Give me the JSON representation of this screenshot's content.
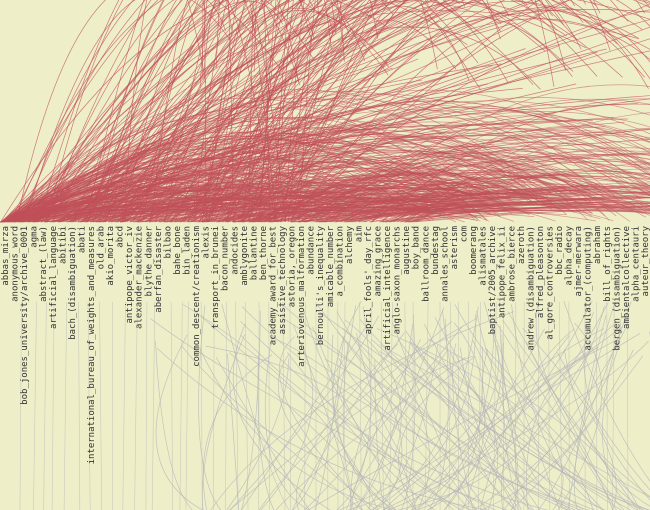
{
  "colors": {
    "background": "#eeeec9",
    "upper_links": "#c0505a",
    "lower_links": "#b4b4b8",
    "label_text": "#333333"
  },
  "labels": [
    "abbas_mirza",
    "anonymous_word",
    "bob_jones_university/archive_0001",
    "agma",
    "abstract_(law)",
    "artificial_language",
    "abitibi",
    "bach_(disambiguation)",
    "abati",
    "international_bureau_of_weights_and_measures",
    "old_arab",
    "akio_morita",
    "abcd",
    "antipope_victor_iv",
    "alexander_mackenzie",
    "blythe_danner",
    "aberfan_disaster",
    "bilbao",
    "bahe_bone",
    "bin_laden",
    "common_descent/creationism",
    "alexis",
    "transport_in_brunei",
    "bacon_number",
    "andocides",
    "amblygonite",
    "ballantine",
    "ben_thorne",
    "academy_award_for_best",
    "assistive_technology",
    "astoria,_oregon",
    "arteriovenous_malformation",
    "abundance",
    "bernoulli's_inequality",
    "amicable_number",
    "a_combination",
    "alchemy",
    "aim",
    "april_fools'_day_rfc",
    "amazing_grace",
    "artificial_intelligence",
    "anglo-saxon_monarchs",
    "augustine",
    "boy_band",
    "ballroom_dance",
    "bundestag",
    "annales_school",
    "asterism",
    "com",
    "boomerang",
    "alismatales",
    "baptist/2005_archive",
    "antipope_felix_ii",
    "ambrose_bierce",
    "azeroth",
    "andrew_(disambiguation)",
    "alfred_pleasonton",
    "al_gore_controversies",
    "bbc_radio",
    "alpha_decay",
    "ajmer-merwara",
    "accumulator_(computing)",
    "abraham",
    "bill_of_rights",
    "bergen_(disambiguation)",
    "ambientalcollective",
    "alpha_centauri",
    "auteur_theory"
  ]
}
